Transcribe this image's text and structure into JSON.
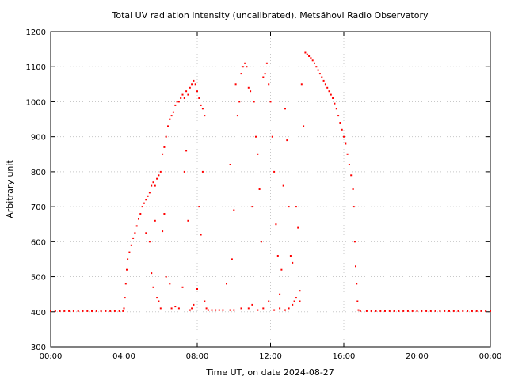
{
  "chart_data": {
    "type": "scatter",
    "title": "Total UV radiation intensity (uncalibrated). Metsähovi Radio Observatory",
    "xlabel": "Time UT, on date 2024-08-27",
    "ylabel": "Arbitrary unit",
    "xlim": [
      0,
      24
    ],
    "ylim": [
      300,
      1200
    ],
    "x_ticks": [
      {
        "value": 0,
        "label": "00:00"
      },
      {
        "value": 4,
        "label": "04:00"
      },
      {
        "value": 8,
        "label": "08:00"
      },
      {
        "value": 12,
        "label": "12:00"
      },
      {
        "value": 16,
        "label": "16:00"
      },
      {
        "value": 20,
        "label": "20:00"
      },
      {
        "value": 24,
        "label": "00:00"
      }
    ],
    "y_ticks": [
      {
        "value": 300,
        "label": "300"
      },
      {
        "value": 400,
        "label": "400"
      },
      {
        "value": 500,
        "label": "500"
      },
      {
        "value": 600,
        "label": "600"
      },
      {
        "value": 700,
        "label": "700"
      },
      {
        "value": 800,
        "label": "800"
      },
      {
        "value": 900,
        "label": "900"
      },
      {
        "value": 1000,
        "label": "1000"
      },
      {
        "value": 1100,
        "label": "1100"
      },
      {
        "value": 1200,
        "label": "1200"
      }
    ],
    "grid": true,
    "color": "#ff0000",
    "series": [
      {
        "points": [
          [
            0.0,
            402
          ],
          [
            0.25,
            402
          ],
          [
            0.5,
            402
          ],
          [
            0.75,
            402
          ],
          [
            1.0,
            402
          ],
          [
            1.25,
            402
          ],
          [
            1.5,
            402
          ],
          [
            1.75,
            402
          ],
          [
            2.0,
            402
          ],
          [
            2.25,
            402
          ],
          [
            2.5,
            402
          ],
          [
            2.75,
            402
          ],
          [
            3.0,
            402
          ],
          [
            3.25,
            402
          ],
          [
            3.5,
            402
          ],
          [
            3.75,
            402
          ],
          [
            3.95,
            402
          ],
          [
            4.0,
            410
          ],
          [
            4.05,
            440
          ],
          [
            4.1,
            480
          ],
          [
            4.15,
            520
          ],
          [
            4.2,
            550
          ],
          [
            4.3,
            570
          ],
          [
            4.4,
            590
          ],
          [
            4.5,
            610
          ],
          [
            4.6,
            625
          ],
          [
            4.7,
            645
          ],
          [
            4.8,
            665
          ],
          [
            4.9,
            680
          ],
          [
            5.0,
            700
          ],
          [
            5.1,
            710
          ],
          [
            5.2,
            720
          ],
          [
            5.3,
            730
          ],
          [
            5.4,
            740
          ],
          [
            5.5,
            760
          ],
          [
            5.6,
            770
          ],
          [
            5.7,
            760
          ],
          [
            5.8,
            780
          ],
          [
            5.9,
            790
          ],
          [
            6.0,
            800
          ],
          [
            6.1,
            850
          ],
          [
            6.2,
            870
          ],
          [
            6.3,
            900
          ],
          [
            6.4,
            930
          ],
          [
            6.5,
            950
          ],
          [
            6.6,
            960
          ],
          [
            6.7,
            970
          ],
          [
            6.8,
            990
          ],
          [
            6.9,
            1000
          ],
          [
            7.0,
            1000
          ],
          [
            7.1,
            1010
          ],
          [
            7.2,
            1020
          ],
          [
            7.3,
            1010
          ],
          [
            7.4,
            1030
          ],
          [
            7.5,
            1020
          ],
          [
            7.6,
            1040
          ],
          [
            7.7,
            1050
          ],
          [
            7.8,
            1060
          ],
          [
            7.9,
            1050
          ],
          [
            8.0,
            1030
          ],
          [
            8.1,
            1010
          ],
          [
            8.2,
            990
          ],
          [
            8.3,
            980
          ],
          [
            8.4,
            960
          ],
          [
            5.2,
            625
          ],
          [
            5.4,
            600
          ],
          [
            5.5,
            510
          ],
          [
            5.6,
            470
          ],
          [
            5.7,
            660
          ],
          [
            5.8,
            440
          ],
          [
            5.9,
            430
          ],
          [
            6.0,
            410
          ],
          [
            6.1,
            630
          ],
          [
            6.2,
            680
          ],
          [
            6.3,
            500
          ],
          [
            6.5,
            480
          ],
          [
            6.6,
            410
          ],
          [
            6.8,
            415
          ],
          [
            7.0,
            410
          ],
          [
            7.2,
            470
          ],
          [
            7.3,
            800
          ],
          [
            7.4,
            860
          ],
          [
            7.5,
            660
          ],
          [
            7.6,
            405
          ],
          [
            7.7,
            410
          ],
          [
            7.8,
            420
          ],
          [
            8.0,
            465
          ],
          [
            8.1,
            700
          ],
          [
            8.2,
            620
          ],
          [
            8.3,
            800
          ],
          [
            8.4,
            430
          ],
          [
            8.5,
            410
          ],
          [
            8.6,
            405
          ],
          [
            8.8,
            405
          ],
          [
            9.0,
            405
          ],
          [
            9.2,
            405
          ],
          [
            9.4,
            405
          ],
          [
            9.6,
            480
          ],
          [
            9.8,
            820
          ],
          [
            9.9,
            550
          ],
          [
            10.0,
            690
          ],
          [
            10.1,
            1050
          ],
          [
            10.2,
            960
          ],
          [
            10.3,
            1000
          ],
          [
            10.4,
            1080
          ],
          [
            10.5,
            1100
          ],
          [
            10.6,
            1110
          ],
          [
            10.7,
            1100
          ],
          [
            10.8,
            1040
          ],
          [
            10.9,
            1030
          ],
          [
            11.0,
            700
          ],
          [
            11.1,
            1000
          ],
          [
            11.2,
            900
          ],
          [
            11.3,
            850
          ],
          [
            11.4,
            750
          ],
          [
            11.5,
            600
          ],
          [
            11.6,
            1070
          ],
          [
            11.7,
            1080
          ],
          [
            11.8,
            1110
          ],
          [
            11.9,
            1050
          ],
          [
            12.0,
            1000
          ],
          [
            12.1,
            900
          ],
          [
            12.2,
            800
          ],
          [
            12.3,
            650
          ],
          [
            12.4,
            560
          ],
          [
            12.5,
            450
          ],
          [
            12.6,
            520
          ],
          [
            12.7,
            760
          ],
          [
            12.8,
            980
          ],
          [
            12.9,
            890
          ],
          [
            13.0,
            700
          ],
          [
            13.1,
            560
          ],
          [
            13.2,
            540
          ],
          [
            13.3,
            430
          ],
          [
            13.4,
            700
          ],
          [
            13.5,
            640
          ],
          [
            13.6,
            430
          ],
          [
            13.7,
            1050
          ],
          [
            13.8,
            930
          ],
          [
            9.8,
            405
          ],
          [
            10.0,
            405
          ],
          [
            10.4,
            410
          ],
          [
            10.8,
            410
          ],
          [
            11.0,
            420
          ],
          [
            11.3,
            405
          ],
          [
            11.6,
            410
          ],
          [
            11.9,
            430
          ],
          [
            12.2,
            405
          ],
          [
            12.5,
            410
          ],
          [
            12.8,
            405
          ],
          [
            13.0,
            410
          ],
          [
            13.2,
            420
          ],
          [
            13.4,
            440
          ],
          [
            13.6,
            460
          ],
          [
            13.9,
            1140
          ],
          [
            14.0,
            1135
          ],
          [
            14.1,
            1130
          ],
          [
            14.2,
            1125
          ],
          [
            14.3,
            1118
          ],
          [
            14.4,
            1110
          ],
          [
            14.5,
            1100
          ],
          [
            14.6,
            1090
          ],
          [
            14.7,
            1080
          ],
          [
            14.8,
            1070
          ],
          [
            14.9,
            1060
          ],
          [
            15.0,
            1050
          ],
          [
            15.1,
            1040
          ],
          [
            15.2,
            1030
          ],
          [
            15.3,
            1020
          ],
          [
            15.4,
            1010
          ],
          [
            15.5,
            995
          ],
          [
            15.6,
            980
          ],
          [
            15.7,
            960
          ],
          [
            15.8,
            940
          ],
          [
            15.9,
            920
          ],
          [
            16.0,
            900
          ],
          [
            16.1,
            880
          ],
          [
            16.2,
            850
          ],
          [
            16.3,
            820
          ],
          [
            16.4,
            790
          ],
          [
            16.5,
            750
          ],
          [
            16.55,
            700
          ],
          [
            16.6,
            600
          ],
          [
            16.65,
            530
          ],
          [
            16.7,
            480
          ],
          [
            16.75,
            430
          ],
          [
            16.8,
            405
          ],
          [
            16.9,
            402
          ],
          [
            17.25,
            402
          ],
          [
            17.5,
            402
          ],
          [
            17.75,
            402
          ],
          [
            18.0,
            402
          ],
          [
            18.25,
            402
          ],
          [
            18.5,
            402
          ],
          [
            18.75,
            402
          ],
          [
            19.0,
            402
          ],
          [
            19.25,
            402
          ],
          [
            19.5,
            402
          ],
          [
            19.75,
            402
          ],
          [
            20.0,
            402
          ],
          [
            20.25,
            402
          ],
          [
            20.5,
            402
          ],
          [
            20.75,
            402
          ],
          [
            21.0,
            402
          ],
          [
            21.25,
            402
          ],
          [
            21.5,
            402
          ],
          [
            21.75,
            402
          ],
          [
            22.0,
            402
          ],
          [
            22.25,
            402
          ],
          [
            22.5,
            402
          ],
          [
            22.75,
            402
          ],
          [
            23.0,
            402
          ],
          [
            23.25,
            402
          ],
          [
            23.5,
            402
          ],
          [
            23.75,
            402
          ],
          [
            24.0,
            402
          ]
        ]
      }
    ]
  }
}
